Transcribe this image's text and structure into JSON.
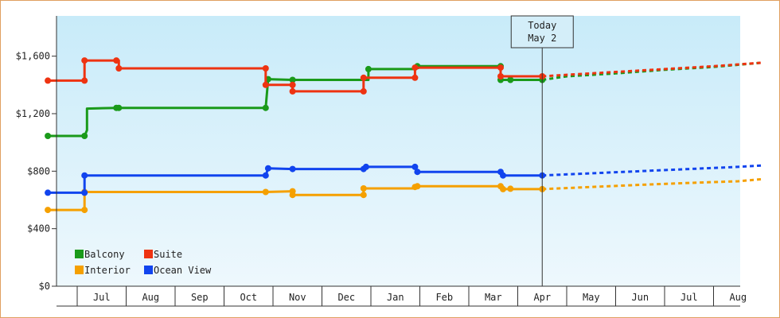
{
  "chart_data": {
    "type": "line",
    "step": true,
    "y_ticks": [
      "$0",
      "$400",
      "$800",
      "$1,200",
      "$1,600"
    ],
    "ylim": [
      0,
      1880
    ],
    "x_months": [
      "Jul",
      "Aug",
      "Sep",
      "Oct",
      "Nov",
      "Dec",
      "Jan",
      "Feb",
      "Mar",
      "Apr",
      "May",
      "Jun",
      "Jul",
      "Aug"
    ],
    "today_label": [
      "Today",
      "May 2"
    ],
    "today_x": 9.0,
    "series": [
      {
        "name": "Balcony",
        "color": "#1a9a1a",
        "points": [
          [
            -1.1,
            1045
          ],
          [
            -0.35,
            1045
          ],
          [
            -0.3,
            1085
          ],
          [
            -0.3,
            1235
          ],
          [
            0.3,
            1240
          ],
          [
            2.3,
            1240
          ],
          [
            3.35,
            1240
          ],
          [
            3.4,
            1440
          ],
          [
            3.9,
            1435
          ],
          [
            4.6,
            1435
          ],
          [
            5.45,
            1435
          ],
          [
            5.45,
            1510
          ],
          [
            6.4,
            1510
          ],
          [
            6.45,
            1530
          ],
          [
            6.9,
            1530
          ],
          [
            8.15,
            1530
          ],
          [
            8.15,
            1435
          ],
          [
            8.35,
            1435
          ],
          [
            8.5,
            1435
          ],
          [
            9.0,
            1435
          ]
        ],
        "markers": [
          [
            -1.1,
            1045
          ],
          [
            -0.35,
            1045
          ],
          [
            0.3,
            1240
          ],
          [
            0.35,
            1240
          ],
          [
            3.35,
            1240
          ],
          [
            3.4,
            1440
          ],
          [
            3.9,
            1435
          ],
          [
            5.45,
            1510
          ],
          [
            6.45,
            1530
          ],
          [
            8.15,
            1530
          ],
          [
            8.15,
            1435
          ],
          [
            8.35,
            1435
          ],
          [
            9.0,
            1435
          ]
        ],
        "forecast": [
          [
            9.0,
            1435
          ],
          [
            9.5,
            1460
          ],
          [
            10.5,
            1480
          ],
          [
            11.5,
            1505
          ],
          [
            12.5,
            1525
          ],
          [
            13.5,
            1555
          ]
        ]
      },
      {
        "name": "Suite",
        "color": "#ee3311",
        "points": [
          [
            -1.1,
            1430
          ],
          [
            -0.35,
            1430
          ],
          [
            -0.35,
            1570
          ],
          [
            0.35,
            1570
          ],
          [
            0.35,
            1515
          ],
          [
            3.35,
            1515
          ],
          [
            3.35,
            1400
          ],
          [
            3.9,
            1400
          ],
          [
            3.9,
            1355
          ],
          [
            5.35,
            1355
          ],
          [
            5.35,
            1450
          ],
          [
            6.4,
            1450
          ],
          [
            6.4,
            1520
          ],
          [
            8.15,
            1520
          ],
          [
            8.15,
            1460
          ],
          [
            9.0,
            1460
          ]
        ],
        "markers": [
          [
            -1.1,
            1430
          ],
          [
            -0.35,
            1430
          ],
          [
            -0.35,
            1570
          ],
          [
            0.3,
            1570
          ],
          [
            0.35,
            1515
          ],
          [
            3.35,
            1515
          ],
          [
            3.35,
            1400
          ],
          [
            3.9,
            1400
          ],
          [
            3.9,
            1355
          ],
          [
            5.35,
            1355
          ],
          [
            5.35,
            1450
          ],
          [
            6.4,
            1450
          ],
          [
            6.4,
            1520
          ],
          [
            8.15,
            1520
          ],
          [
            8.15,
            1460
          ],
          [
            9.0,
            1460
          ]
        ],
        "forecast": [
          [
            9.0,
            1460
          ],
          [
            9.5,
            1470
          ],
          [
            10.5,
            1490
          ],
          [
            11.5,
            1510
          ],
          [
            12.5,
            1530
          ],
          [
            13.5,
            1555
          ]
        ]
      },
      {
        "name": "Interior",
        "color": "#f5a000",
        "points": [
          [
            -1.1,
            530
          ],
          [
            -0.35,
            530
          ],
          [
            -0.35,
            655
          ],
          [
            3.35,
            655
          ],
          [
            3.9,
            660
          ],
          [
            3.9,
            635
          ],
          [
            5.35,
            635
          ],
          [
            5.35,
            680
          ],
          [
            6.4,
            680
          ],
          [
            6.4,
            695
          ],
          [
            8.15,
            695
          ],
          [
            8.2,
            675
          ],
          [
            9.0,
            675
          ]
        ],
        "markers": [
          [
            -1.1,
            530
          ],
          [
            -0.35,
            530
          ],
          [
            -0.35,
            655
          ],
          [
            3.35,
            655
          ],
          [
            3.9,
            660
          ],
          [
            3.9,
            635
          ],
          [
            5.35,
            635
          ],
          [
            5.35,
            680
          ],
          [
            6.4,
            690
          ],
          [
            6.45,
            695
          ],
          [
            8.15,
            695
          ],
          [
            8.2,
            675
          ],
          [
            8.35,
            678
          ],
          [
            9.0,
            675
          ]
        ],
        "forecast": [
          [
            9.0,
            675
          ],
          [
            10.0,
            690
          ],
          [
            11.0,
            705
          ],
          [
            12.0,
            718
          ],
          [
            13.0,
            730
          ],
          [
            13.5,
            745
          ]
        ]
      },
      {
        "name": "Ocean View",
        "color": "#1144ee",
        "points": [
          [
            -1.1,
            650
          ],
          [
            -0.35,
            650
          ],
          [
            -0.35,
            770
          ],
          [
            3.35,
            770
          ],
          [
            3.4,
            820
          ],
          [
            3.9,
            815
          ],
          [
            5.35,
            815
          ],
          [
            5.4,
            830
          ],
          [
            6.4,
            830
          ],
          [
            6.45,
            795
          ],
          [
            8.15,
            795
          ],
          [
            8.2,
            770
          ],
          [
            9.0,
            770
          ]
        ],
        "markers": [
          [
            -1.1,
            650
          ],
          [
            -0.35,
            650
          ],
          [
            -0.35,
            770
          ],
          [
            3.35,
            770
          ],
          [
            3.4,
            820
          ],
          [
            3.9,
            815
          ],
          [
            5.35,
            815
          ],
          [
            5.4,
            830
          ],
          [
            6.4,
            830
          ],
          [
            6.45,
            795
          ],
          [
            8.15,
            795
          ],
          [
            8.2,
            770
          ],
          [
            9.0,
            770
          ]
        ],
        "forecast": [
          [
            9.0,
            770
          ],
          [
            10.0,
            785
          ],
          [
            11.0,
            800
          ],
          [
            12.0,
            815
          ],
          [
            13.0,
            830
          ],
          [
            13.5,
            840
          ]
        ]
      }
    ]
  }
}
